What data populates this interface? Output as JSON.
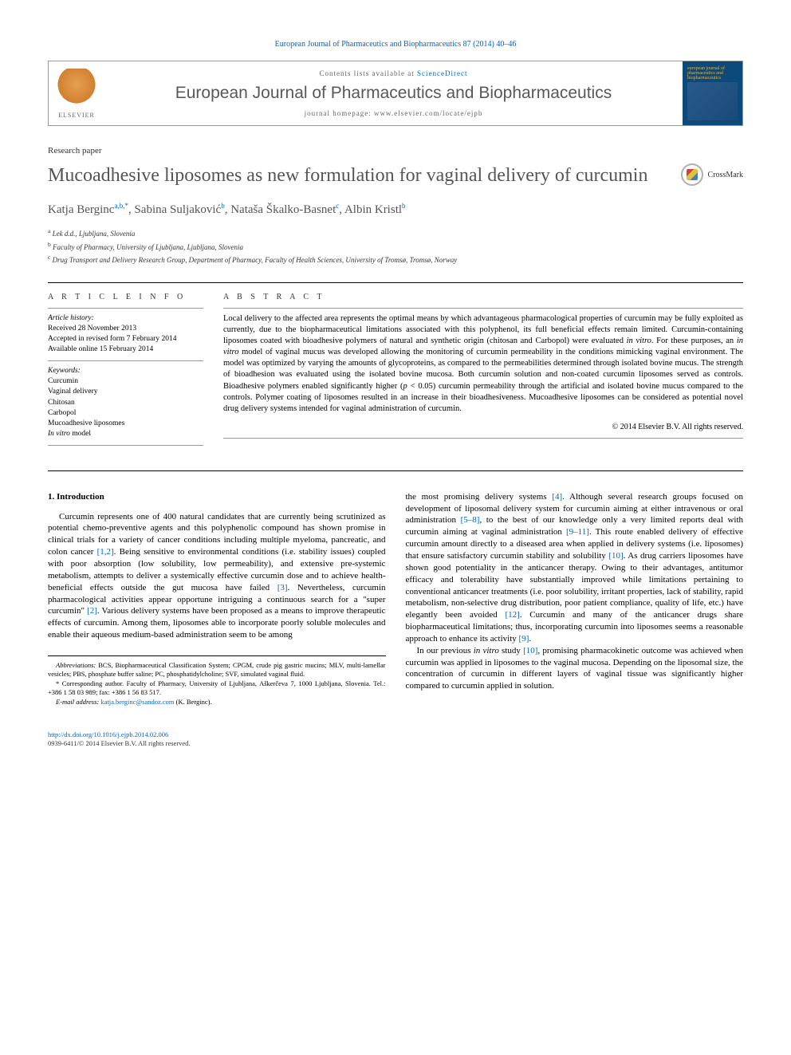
{
  "journal_ref": "European Journal of Pharmaceutics and Biopharmaceutics 87 (2014) 40–46",
  "header": {
    "contents_prefix": "Contents lists available at ",
    "contents_link": "ScienceDirect",
    "journal_title": "European Journal of Pharmaceutics and Biopharmaceutics",
    "homepage_prefix": "journal homepage: ",
    "homepage_url": "www.elsevier.com/locate/ejpb",
    "publisher": "ELSEVIER",
    "cover_text": "european journal of pharmaceutics and biopharmaceutics"
  },
  "paper_type": "Research paper",
  "title": "Mucoadhesive liposomes as new formulation for vaginal delivery of curcumin",
  "crossmark": "CrossMark",
  "authors_html": "Katja Berginc<sup>a,b,*</sup>, Sabina Suljaković<sup>b</sup>, Nataša Škalko-Basnet<sup>c</sup>, Albin Kristl<sup>b</sup>",
  "affiliations": {
    "a": "Lek d.d., Ljubljana, Slovenia",
    "b": "Faculty of Pharmacy, University of Ljubljana, Ljubljana, Slovenia",
    "c": "Drug Transport and Delivery Research Group, Department of Pharmacy, Faculty of Health Sciences, University of Tromsø, Tromsø, Norway"
  },
  "info": {
    "heading": "A R T I C L E   I N F O",
    "history_label": "Article history:",
    "received": "Received 28 November 2013",
    "accepted": "Accepted in revised form 7 February 2014",
    "online": "Available online 15 February 2014",
    "keywords_label": "Keywords:",
    "keywords": [
      "Curcumin",
      "Vaginal delivery",
      "Chitosan",
      "Carbopol",
      "Mucoadhesive liposomes",
      "In vitro model"
    ]
  },
  "abstract": {
    "heading": "A B S T R A C T",
    "text": "Local delivery to the affected area represents the optimal means by which advantageous pharmacological properties of curcumin may be fully exploited as currently, due to the biopharmaceutical limitations associated with this polyphenol, its full beneficial effects remain limited. Curcumin-containing liposomes coated with bioadhesive polymers of natural and synthetic origin (chitosan and Carbopol) were evaluated in vitro. For these purposes, an in vitro model of vaginal mucus was developed allowing the monitoring of curcumin permeability in the conditions mimicking vaginal environment. The model was optimized by varying the amounts of glycoproteins, as compared to the permeabilities determined through isolated bovine mucus. The strength of bioadhesion was evaluated using the isolated bovine mucosa. Both curcumin solution and non-coated curcumin liposomes served as controls. Bioadhesive polymers enabled significantly higher (p < 0.05) curcumin permeability through the artificial and isolated bovine mucus compared to the controls. Polymer coating of liposomes resulted in an increase in their bioadhesiveness. Mucoadhesive liposomes can be considered as potential novel drug delivery systems intended for vaginal administration of curcumin.",
    "copyright": "© 2014 Elsevier B.V. All rights reserved."
  },
  "body": {
    "section1_heading": "1. Introduction",
    "col1_p1": "Curcumin represents one of 400 natural candidates that are currently being scrutinized as potential chemo-preventive agents and this polyphenolic compound has shown promise in clinical trials for a variety of cancer conditions including multiple myeloma, pancreatic, and colon cancer [1,2]. Being sensitive to environmental conditions (i.e. stability issues) coupled with poor absorption (low solubility, low permeability), and extensive pre-systemic metabolism, attempts to deliver a systemically effective curcumin dose and to achieve health-beneficial effects outside the gut mucosa have failed [3]. Nevertheless, curcumin pharmacological activities appear opportune intriguing a continuous search for a \"super curcumin\" [2]. Various delivery systems have been proposed as a means to improve therapeutic effects of curcumin. Among them, liposomes able to incorporate poorly soluble molecules and enable their aqueous medium-based administration seem to be among",
    "col2_p1": "the most promising delivery systems [4]. Although several research groups focused on development of liposomal delivery system for curcumin aiming at either intravenous or oral administration [5–8], to the best of our knowledge only a very limited reports deal with curcumin aiming at vaginal administration [9–11]. This route enabled delivery of effective curcumin amount directly to a diseased area when applied in delivery systems (i.e. liposomes) that ensure satisfactory curcumin stability and solubility [10]. As drug carriers liposomes have shown good potentiality in the anticancer therapy. Owing to their advantages, antitumor efficacy and tolerability have substantially improved while limitations pertaining to conventional anticancer treatments (i.e. poor solubility, irritant properties, lack of stability, rapid metabolism, non-selective drug distribution, poor patient compliance, quality of life, etc.) have elegantly been avoided [12]. Curcumin and many of the anticancer drugs share biopharmaceutical limitations; thus, incorporating curcumin into liposomes seems a reasonable approach to enhance its activity [9].",
    "col2_p2": "In our previous in vitro study [10], promising pharmacokinetic outcome was achieved when curcumin was applied in liposomes to the vaginal mucosa. Depending on the liposomal size, the concentration of curcumin in different layers of vaginal tissue was significantly higher compared to curcumin applied in solution."
  },
  "footnotes": {
    "abbrev_label": "Abbreviations:",
    "abbrev": "BCS, Biopharmaceutical Classification System; CPGM, crude pig gastric mucins; MLV, multi-lamellar vesicles; PBS, phosphate buffer saline; PC, phosphatidylcholine; SVF, simulated vaginal fluid.",
    "corresp": "* Corresponding author. Faculty of Pharmacy, University of Ljubljana, Aškerčeva 7, 1000 Ljubljana, Slovenia. Tel.: +386 1 58 03 989; fax: +386 1 56 83 517.",
    "email_label": "E-mail address:",
    "email": "katja.berginc@sandoz.com",
    "email_suffix": "(K. Berginc)."
  },
  "footer": {
    "doi": "http://dx.doi.org/10.1016/j.ejpb.2014.02.006",
    "issn": "0939-6411/© 2014 Elsevier B.V. All rights reserved."
  },
  "colors": {
    "link": "#0066cc",
    "title": "#555555",
    "cover_bg": "#0b4a7a",
    "cover_accent": "#e8b040"
  }
}
